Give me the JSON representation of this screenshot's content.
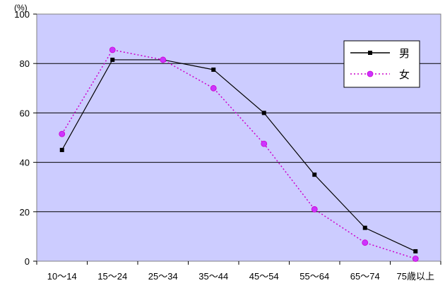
{
  "chart_data": {
    "type": "line",
    "unit_label": "(%)",
    "categories": [
      "10～14",
      "15～24",
      "25～34",
      "35～44",
      "45～54",
      "55～64",
      "65～74",
      "75歳以上"
    ],
    "ylim": [
      0,
      100
    ],
    "yticks": [
      0,
      20,
      40,
      60,
      80,
      100
    ],
    "grid": true,
    "legend_position": "top-right",
    "plot_background": "#ccccff",
    "series": [
      {
        "name": "男",
        "values": [
          45,
          81.5,
          81.5,
          77.5,
          60,
          35,
          13.5,
          4
        ],
        "color": "#000000",
        "line_style": "solid",
        "marker": "square"
      },
      {
        "name": "女",
        "values": [
          51.5,
          85.5,
          81.5,
          70,
          47.5,
          21,
          7.5,
          1
        ],
        "color": "#cc00cc",
        "marker_fill": "#cc33ff",
        "line_style": "dotted",
        "marker": "circle"
      }
    ]
  }
}
